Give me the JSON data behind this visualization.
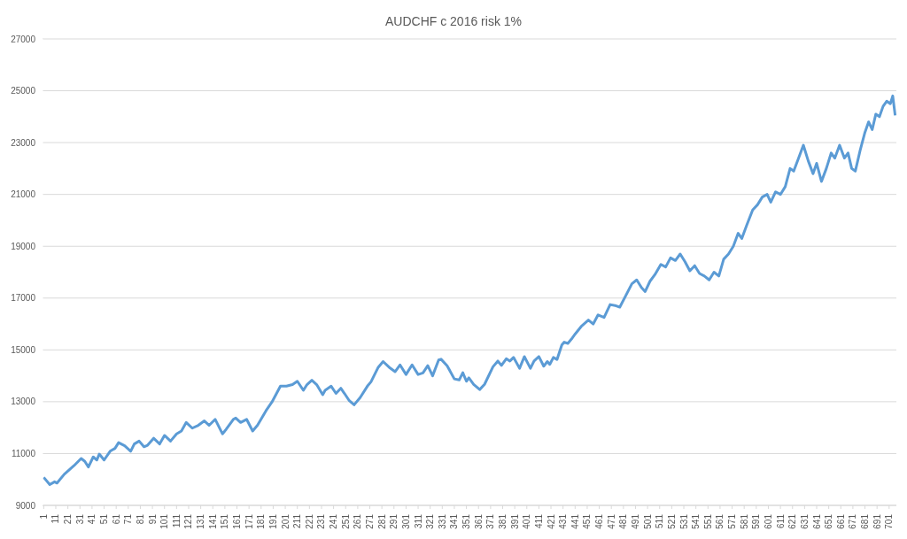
{
  "chart_data": {
    "type": "line",
    "title": "AUDCHF c 2016 risk 1%",
    "grid": "y",
    "marker": "none",
    "line_style": "solid",
    "xlim": [
      0,
      707
    ],
    "ylim": [
      9000,
      27000
    ],
    "yticks": [
      9000,
      11000,
      13000,
      15000,
      17000,
      19000,
      21000,
      23000,
      25000,
      27000
    ],
    "xticks": [
      1,
      11,
      21,
      31,
      41,
      51,
      61,
      71,
      81,
      91,
      101,
      111,
      121,
      131,
      141,
      151,
      161,
      171,
      181,
      191,
      201,
      211,
      221,
      231,
      241,
      251,
      261,
      271,
      281,
      291,
      301,
      311,
      321,
      331,
      341,
      351,
      361,
      371,
      381,
      391,
      401,
      411,
      421,
      431,
      441,
      451,
      461,
      471,
      481,
      491,
      501,
      511,
      521,
      531,
      541,
      551,
      561,
      571,
      581,
      591,
      601,
      611,
      621,
      631,
      641,
      651,
      661,
      671,
      681,
      691,
      701
    ],
    "series": [
      {
        "color": "#5b9bd5",
        "x": [
          1,
          6,
          10,
          12,
          18,
          26,
          32,
          35,
          38,
          42,
          45,
          47,
          51,
          56,
          60,
          63,
          68,
          73,
          76,
          80,
          84,
          87,
          92,
          97,
          101,
          106,
          111,
          115,
          119,
          124,
          129,
          134,
          138,
          143,
          149,
          152,
          158,
          160,
          164,
          169,
          174,
          178,
          185,
          190,
          197,
          202,
          207,
          211,
          216,
          219,
          223,
          227,
          232,
          234,
          239,
          243,
          247,
          250,
          254,
          258,
          263,
          269,
          272,
          278,
          282,
          287,
          292,
          296,
          301,
          306,
          311,
          315,
          319,
          323,
          328,
          330,
          335,
          341,
          345,
          348,
          351,
          353,
          357,
          362,
          366,
          373,
          377,
          380,
          384,
          387,
          390,
          395,
          399,
          404,
          407,
          411,
          415,
          418,
          420,
          423,
          426,
          430,
          432,
          435,
          438,
          441,
          446,
          452,
          456,
          460,
          465,
          470,
          475,
          478,
          483,
          488,
          492,
          496,
          499,
          503,
          507,
          512,
          516,
          520,
          524,
          528,
          532,
          536,
          540,
          544,
          548,
          552,
          556,
          560,
          564,
          568,
          572,
          576,
          579,
          583,
          588,
          592,
          596,
          600,
          603,
          607,
          611,
          615,
          619,
          622,
          626,
          630,
          634,
          638,
          641,
          645,
          649,
          653,
          656,
          660,
          664,
          667,
          670,
          673,
          677,
          681,
          684,
          687,
          690,
          693,
          696,
          699,
          702,
          704,
          706
        ],
        "values": [
          10080,
          9800,
          9910,
          9860,
          10200,
          10530,
          10810,
          10700,
          10480,
          10870,
          10750,
          10980,
          10750,
          11090,
          11200,
          11420,
          11300,
          11090,
          11370,
          11480,
          11260,
          11320,
          11590,
          11370,
          11700,
          11480,
          11760,
          11870,
          12200,
          11980,
          12090,
          12260,
          12090,
          12320,
          11760,
          11930,
          12320,
          12370,
          12200,
          12320,
          11870,
          12090,
          12650,
          12990,
          13600,
          13600,
          13660,
          13790,
          13440,
          13660,
          13830,
          13660,
          13270,
          13440,
          13600,
          13320,
          13520,
          13320,
          13040,
          12880,
          13160,
          13600,
          13770,
          14330,
          14550,
          14330,
          14160,
          14420,
          14050,
          14420,
          14050,
          14110,
          14390,
          14000,
          14610,
          14640,
          14390,
          13880,
          13840,
          14120,
          13790,
          13920,
          13670,
          13470,
          13670,
          14350,
          14570,
          14400,
          14660,
          14570,
          14710,
          14290,
          14740,
          14290,
          14570,
          14740,
          14370,
          14550,
          14440,
          14710,
          14630,
          15190,
          15300,
          15250,
          15420,
          15610,
          15900,
          16150,
          16000,
          16350,
          16250,
          16750,
          16700,
          16650,
          17100,
          17550,
          17700,
          17400,
          17250,
          17650,
          17900,
          18300,
          18200,
          18550,
          18450,
          18700,
          18400,
          18050,
          18250,
          17950,
          17850,
          17700,
          18000,
          17850,
          18500,
          18700,
          19000,
          19500,
          19300,
          19800,
          20400,
          20600,
          20900,
          21000,
          20700,
          21100,
          21000,
          21300,
          22000,
          21900,
          22400,
          22900,
          22300,
          21800,
          22200,
          21500,
          22000,
          22600,
          22400,
          22900,
          22400,
          22600,
          22000,
          21900,
          22700,
          23400,
          23800,
          23500,
          24100,
          24000,
          24400,
          24600,
          24500,
          24800,
          24050
        ]
      }
    ]
  }
}
